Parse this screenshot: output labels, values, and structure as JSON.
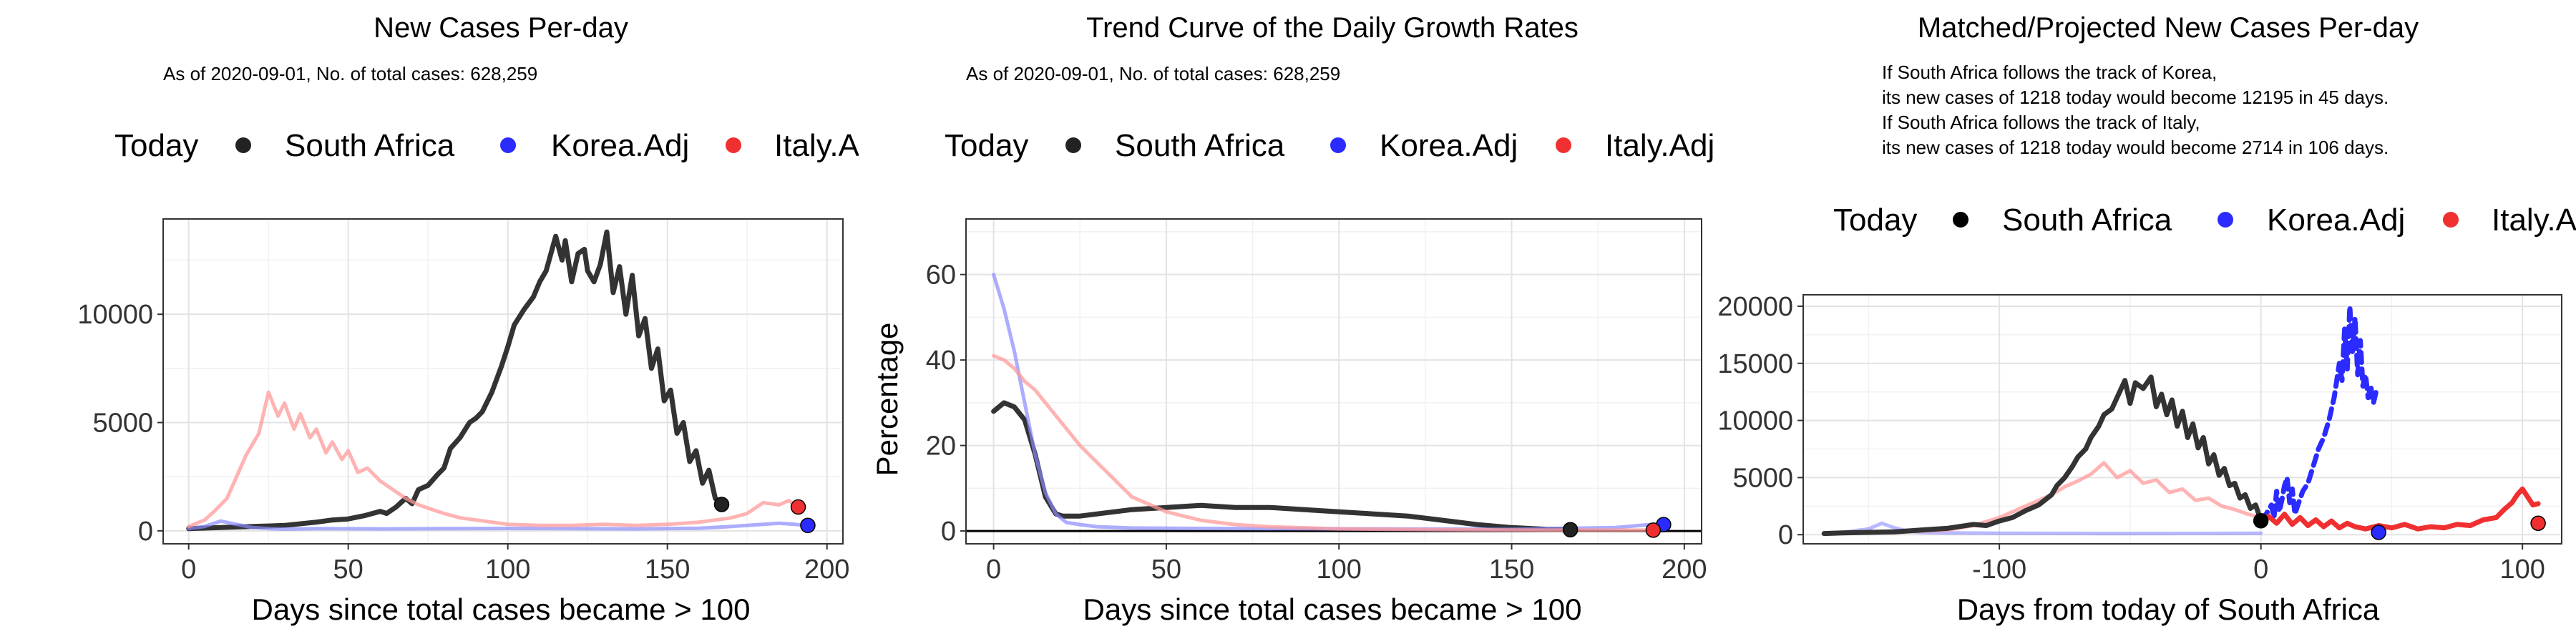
{
  "chart_data": [
    {
      "type": "line",
      "title": "New Cases Per-day",
      "subtitle": "As of 2020-09-01, No. of total cases: 628,259",
      "legend_title": "Today",
      "legend_labels": [
        "South Africa",
        "Korea.Adj",
        "Italy.A"
      ],
      "xlabel": "Days since total cases became > 100",
      "ylabel": "",
      "xlim": [
        -8,
        205
      ],
      "ylim": [
        -600,
        14400
      ],
      "xticks": [
        0,
        50,
        100,
        150,
        200
      ],
      "xtick_labels": [
        "0",
        "50",
        "100",
        "150",
        "200"
      ],
      "yticks": [
        0,
        5000,
        10000
      ],
      "ytick_labels": [
        "0",
        "5000",
        "10000"
      ],
      "series": [
        {
          "name": "South Africa",
          "color": "#333333",
          "opacity": 1,
          "width": 7,
          "x": [
            0,
            10,
            20,
            30,
            40,
            45,
            50,
            55,
            60,
            62,
            65,
            68,
            70,
            72,
            75,
            78,
            80,
            82,
            85,
            88,
            90,
            92,
            95,
            98,
            100,
            102,
            105,
            108,
            110,
            112,
            115,
            117,
            118,
            120,
            122,
            124,
            125,
            127,
            129,
            131,
            133,
            135,
            137,
            139,
            141,
            143,
            145,
            147,
            149,
            151,
            153,
            155,
            157,
            159,
            161,
            163,
            165,
            167
          ],
          "y": [
            100,
            150,
            200,
            250,
            400,
            500,
            550,
            700,
            900,
            800,
            1100,
            1500,
            1250,
            1900,
            2100,
            2600,
            2900,
            3800,
            4300,
            5000,
            5200,
            5500,
            6400,
            7600,
            8500,
            9500,
            10200,
            10800,
            11500,
            12000,
            13600,
            12500,
            13400,
            11500,
            12800,
            13000,
            12000,
            11500,
            12300,
            13800,
            11000,
            12200,
            10000,
            11800,
            9000,
            9800,
            7500,
            8400,
            6000,
            6500,
            4500,
            5000,
            3200,
            3700,
            2200,
            2800,
            1500,
            1218
          ]
        },
        {
          "name": "Korea.Adj",
          "color": "#8a8aff",
          "opacity": 0.7,
          "width": 5,
          "x": [
            0,
            5,
            10,
            15,
            20,
            25,
            30,
            35,
            40,
            60,
            80,
            100,
            120,
            140,
            160,
            170,
            180,
            185,
            190,
            193
          ],
          "y": [
            100,
            200,
            450,
            300,
            150,
            100,
            80,
            90,
            100,
            90,
            100,
            110,
            100,
            90,
            120,
            200,
            300,
            350,
            300,
            250
          ]
        },
        {
          "name": "Italy.Adj",
          "color": "#ff9a9a",
          "opacity": 0.75,
          "width": 5,
          "x": [
            0,
            5,
            8,
            12,
            15,
            18,
            22,
            25,
            28,
            30,
            33,
            35,
            38,
            40,
            43,
            45,
            48,
            50,
            53,
            56,
            60,
            64,
            68,
            72,
            76,
            80,
            85,
            90,
            95,
            100,
            110,
            120,
            130,
            140,
            150,
            160,
            170,
            175,
            180,
            185,
            188,
            190
          ],
          "y": [
            200,
            500,
            900,
            1500,
            2500,
            3500,
            4500,
            6400,
            5300,
            5900,
            4700,
            5400,
            4300,
            4700,
            3600,
            4100,
            3300,
            3700,
            2700,
            2900,
            2300,
            1900,
            1500,
            1200,
            1000,
            800,
            600,
            500,
            400,
            300,
            250,
            250,
            300,
            250,
            300,
            400,
            600,
            800,
            1300,
            1200,
            1400,
            1200
          ]
        }
      ],
      "points": [
        {
          "x": 167,
          "y": 1218,
          "color": "#222222"
        },
        {
          "x": 194,
          "y": 250,
          "color": "#2b2bff"
        },
        {
          "x": 191,
          "y": 1100,
          "color": "#f03030"
        }
      ],
      "hline": null
    },
    {
      "type": "line",
      "title": "Trend Curve of the Daily Growth Rates",
      "subtitle": "As of 2020-09-01, No. of total cases: 628,259",
      "legend_title": "Today",
      "legend_labels": [
        "South Africa",
        "Korea.Adj",
        "Italy.Adj"
      ],
      "xlabel": "Days since total cases became > 100",
      "ylabel": "Percentage",
      "xlim": [
        -8,
        205
      ],
      "ylim": [
        -3,
        73
      ],
      "xticks": [
        0,
        50,
        100,
        150,
        200
      ],
      "xtick_labels": [
        "0",
        "50",
        "100",
        "150",
        "200"
      ],
      "yticks": [
        0,
        20,
        40,
        60
      ],
      "ytick_labels": [
        "0",
        "20",
        "40",
        "60"
      ],
      "series": [
        {
          "name": "South Africa",
          "color": "#333333",
          "opacity": 1,
          "width": 7,
          "x": [
            0,
            3,
            6,
            9,
            12,
            15,
            18,
            20,
            25,
            30,
            40,
            50,
            60,
            70,
            80,
            90,
            100,
            110,
            120,
            130,
            140,
            150,
            160,
            167
          ],
          "y": [
            28,
            30,
            29,
            26,
            18,
            8,
            4,
            3.5,
            3.5,
            4,
            5,
            5.5,
            6,
            5.5,
            5.5,
            5,
            4.5,
            4,
            3.5,
            2.5,
            1.5,
            0.8,
            0.4,
            0.3
          ]
        },
        {
          "name": "Korea.Adj",
          "color": "#8a8aff",
          "opacity": 0.7,
          "width": 5,
          "x": [
            0,
            3,
            6,
            9,
            12,
            15,
            18,
            21,
            25,
            30,
            40,
            60,
            100,
            150,
            180,
            190,
            194
          ],
          "y": [
            60,
            52,
            42,
            30,
            18,
            9,
            4,
            2,
            1.5,
            1,
            0.7,
            0.6,
            0.5,
            0.4,
            0.8,
            1.5,
            1.5
          ]
        },
        {
          "name": "Italy.Adj",
          "color": "#ff9a9a",
          "opacity": 0.75,
          "width": 5,
          "x": [
            0,
            3,
            6,
            9,
            12,
            15,
            20,
            25,
            30,
            35,
            40,
            50,
            60,
            70,
            80,
            100,
            130,
            160,
            185,
            191
          ],
          "y": [
            41,
            40,
            38,
            35,
            33,
            30,
            25,
            20,
            16,
            12,
            8,
            4.5,
            2.5,
            1.5,
            1,
            0.5,
            0.3,
            0.2,
            0.2,
            0.2
          ]
        }
      ],
      "points": [
        {
          "x": 167,
          "y": 0.3,
          "color": "#222222"
        },
        {
          "x": 194,
          "y": 1.5,
          "color": "#2b2bff"
        },
        {
          "x": 191,
          "y": 0.2,
          "color": "#f03030"
        }
      ],
      "hline": 0
    },
    {
      "type": "line",
      "title": "Matched/Projected New Cases Per-day",
      "annotation_lines": [
        "If South Africa follows the track of Korea,",
        "its new cases of 1218 today would become 12195 in 45 days.",
        "If South Africa follows the track of Italy,",
        "its new cases of 1218 today would become 2714 in 106 days."
      ],
      "legend_title": "Today",
      "legend_labels": [
        "South Africa",
        "Korea.Adj",
        "Italy.A"
      ],
      "xlabel": "Days from today of South Africa",
      "ylabel": "",
      "xlim": [
        -175,
        115
      ],
      "ylim": [
        -800,
        21000
      ],
      "xticks": [
        -100,
        0,
        100
      ],
      "xtick_labels": [
        "-100",
        "0",
        "100"
      ],
      "yticks": [
        0,
        5000,
        10000,
        15000,
        20000
      ],
      "ytick_labels": [
        "0",
        "5000",
        "10000",
        "15000",
        "20000"
      ],
      "series": [
        {
          "name": "Korea.Adj",
          "color": "#8a8aff",
          "opacity": 0.6,
          "width": 5,
          "x": [
            -167,
            -160,
            -150,
            -145,
            -140,
            -135,
            -130,
            -120,
            -100,
            -60,
            -20,
            0
          ],
          "y": [
            100,
            200,
            500,
            1000,
            600,
            300,
            200,
            150,
            120,
            100,
            110,
            120
          ]
        },
        {
          "name": "Italy.Adj",
          "color": "#ff9a9a",
          "opacity": 0.75,
          "width": 5,
          "x": [
            -167,
            -150,
            -140,
            -120,
            -110,
            -100,
            -90,
            -80,
            -75,
            -70,
            -65,
            -60,
            -55,
            -50,
            -45,
            -40,
            -35,
            -30,
            -25,
            -20,
            -15,
            -10,
            -5,
            0
          ],
          "y": [
            100,
            150,
            200,
            400,
            800,
            1500,
            2500,
            3500,
            4200,
            4700,
            5300,
            6300,
            5000,
            5600,
            4500,
            4800,
            3700,
            4000,
            3000,
            3200,
            2500,
            2200,
            1800,
            1500
          ]
        },
        {
          "name": "South Africa",
          "color": "#333333",
          "opacity": 1,
          "width": 7,
          "x": [
            -167,
            -160,
            -150,
            -140,
            -130,
            -120,
            -110,
            -105,
            -100,
            -95,
            -90,
            -85,
            -80,
            -78,
            -75,
            -72,
            -70,
            -67,
            -65,
            -62,
            -60,
            -57,
            -55,
            -52,
            -50,
            -48,
            -45,
            -42,
            -40,
            -38,
            -36,
            -34,
            -32,
            -30,
            -28,
            -26,
            -24,
            -22,
            -20,
            -18,
            -16,
            -14,
            -12,
            -10,
            -8,
            -6,
            -4,
            -2,
            0
          ],
          "y": [
            100,
            150,
            200,
            250,
            400,
            550,
            900,
            800,
            1200,
            1500,
            2100,
            2600,
            3500,
            4300,
            5000,
            6000,
            6800,
            7500,
            8500,
            9500,
            10500,
            11000,
            12000,
            13500,
            11500,
            13300,
            12800,
            13800,
            11200,
            12300,
            10500,
            11800,
            9500,
            10800,
            8500,
            9700,
            7600,
            8500,
            6200,
            7000,
            5200,
            5800,
            4300,
            4500,
            3200,
            3500,
            2300,
            2600,
            1218
          ]
        },
        {
          "name": "Korea.Adj projected",
          "color": "#2b2bff",
          "opacity": 1,
          "width": 7,
          "dash": "14 9",
          "x": [
            0,
            2,
            4,
            5,
            6,
            7,
            8,
            9,
            10,
            11,
            12,
            13,
            14,
            16,
            18,
            20,
            22,
            24,
            26,
            28,
            30,
            31,
            32,
            33,
            34,
            35,
            36,
            37,
            38,
            39,
            40,
            41,
            42,
            43,
            44,
            45
          ],
          "y": [
            1300,
            1800,
            2600,
            1500,
            3800,
            2000,
            3000,
            4300,
            5000,
            2800,
            4000,
            1800,
            2500,
            3800,
            4500,
            6000,
            7500,
            8500,
            10000,
            12000,
            15000,
            13500,
            18000,
            14500,
            20000,
            16000,
            19000,
            14000,
            17000,
            13000,
            14000,
            12000,
            13000,
            11500,
            12500,
            12195
          ]
        },
        {
          "name": "Italy.Adj projected",
          "color": "#f03030",
          "opacity": 1,
          "width": 7,
          "dash": "none",
          "x": [
            0,
            3,
            6,
            9,
            12,
            15,
            18,
            21,
            24,
            27,
            30,
            33,
            36,
            40,
            45,
            50,
            55,
            60,
            65,
            70,
            75,
            80,
            85,
            90,
            93,
            96,
            98,
            100,
            102,
            104,
            106
          ],
          "y": [
            1218,
            1600,
            1000,
            1800,
            900,
            1500,
            800,
            1300,
            700,
            1200,
            600,
            1000,
            700,
            500,
            800,
            600,
            900,
            500,
            700,
            600,
            900,
            800,
            1300,
            1500,
            2200,
            2800,
            3500,
            4000,
            3300,
            2600,
            2714
          ]
        }
      ],
      "points": [
        {
          "x": 0,
          "y": 1218,
          "color": "#000000"
        },
        {
          "x": 45,
          "y": 200,
          "color": "#2b2bff"
        },
        {
          "x": 106,
          "y": 1000,
          "color": "#f03030"
        }
      ],
      "hline": null
    }
  ],
  "legend_colors": [
    "#222222",
    "#2b2bff",
    "#f03030"
  ]
}
